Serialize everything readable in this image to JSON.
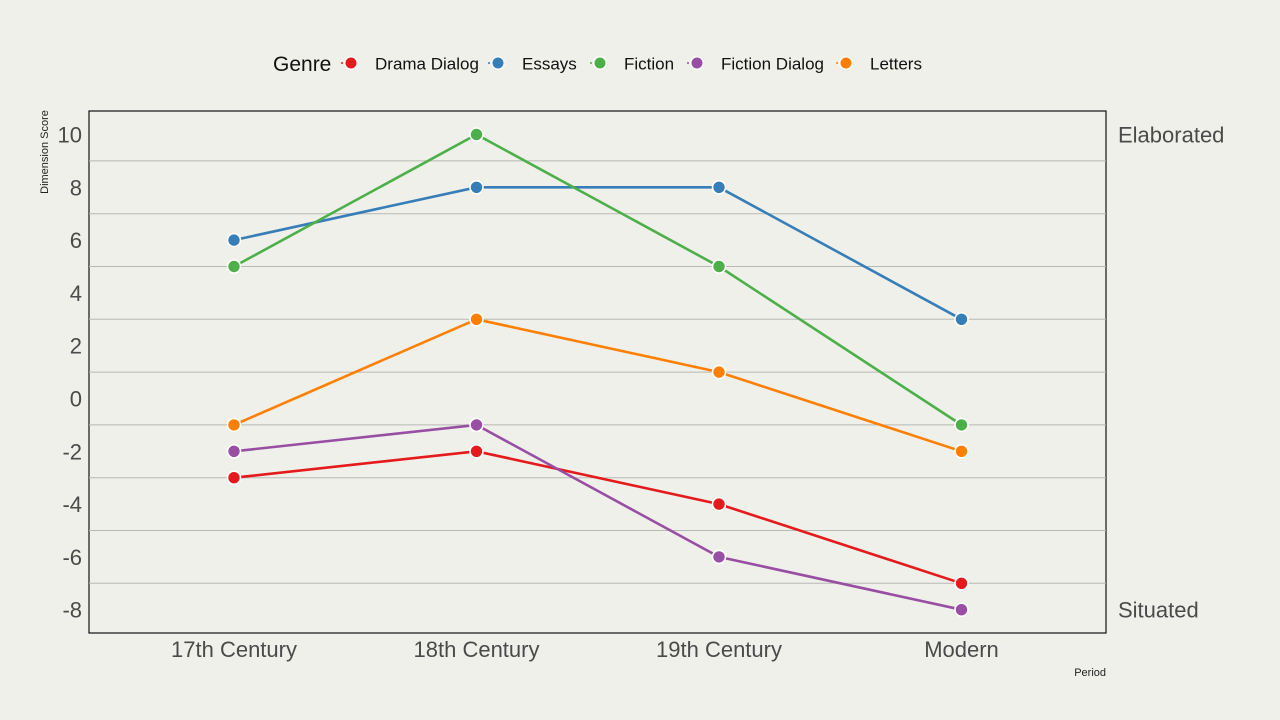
{
  "chart_data": {
    "type": "line",
    "categories": [
      "17th Century",
      "18th Century",
      "19th Century",
      "Modern"
    ],
    "series": [
      {
        "name": "Drama Dialog",
        "color": "#e41a1c",
        "values": [
          -3,
          -2,
          -4,
          -7
        ]
      },
      {
        "name": "Essays",
        "color": "#377eb8",
        "values": [
          6,
          8,
          8,
          3
        ]
      },
      {
        "name": "Fiction",
        "color": "#4daf4a",
        "values": [
          5,
          10,
          5,
          -1
        ]
      },
      {
        "name": "Fiction Dialog",
        "color": "#984ea3",
        "values": [
          -2,
          -1,
          -6,
          -8
        ]
      },
      {
        "name": "Letters",
        "color": "#ff7f00",
        "values": [
          -1,
          3,
          1,
          -2
        ]
      }
    ],
    "yticks": [
      10,
      8,
      6,
      4,
      2,
      0,
      -2,
      -4,
      -6,
      -8
    ],
    "ylim": [
      -8.8,
      10.9
    ],
    "xlabel": "Period",
    "ylabel": "Dimension Score",
    "legend_title": "Genre",
    "legend_position": "top",
    "right_labels": {
      "top": "Elaborated",
      "bottom": "Situated"
    },
    "gridlines": [
      9,
      7,
      5,
      3,
      1,
      -1,
      -3,
      -5,
      -7
    ]
  }
}
